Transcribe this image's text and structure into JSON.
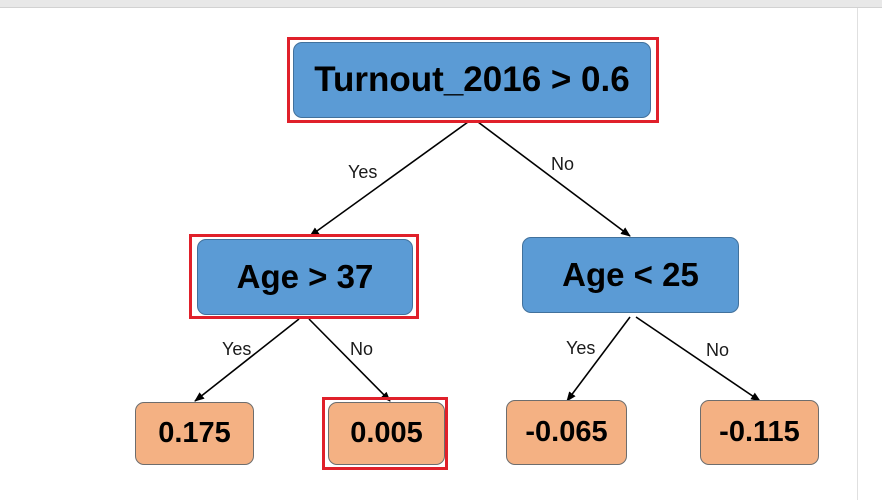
{
  "tree": {
    "root": {
      "label": "Turnout_2016 > 0.6",
      "highlighted": true
    },
    "left": {
      "label": "Age > 37",
      "highlighted": true
    },
    "right": {
      "label": "Age < 25",
      "highlighted": false
    },
    "leaves": [
      {
        "label": "0.175",
        "highlighted": false
      },
      {
        "label": "0.005",
        "highlighted": true
      },
      {
        "label": "-0.065",
        "highlighted": false
      },
      {
        "label": "-0.115",
        "highlighted": false
      }
    ],
    "edge_labels": {
      "root_yes": "Yes",
      "root_no": "No",
      "left_yes": "Yes",
      "left_no": "No",
      "right_yes": "Yes",
      "right_no": "No"
    }
  },
  "colors": {
    "decision_fill": "#5b9bd5",
    "leaf_fill": "#f4b183",
    "highlight": "#e0202a"
  }
}
